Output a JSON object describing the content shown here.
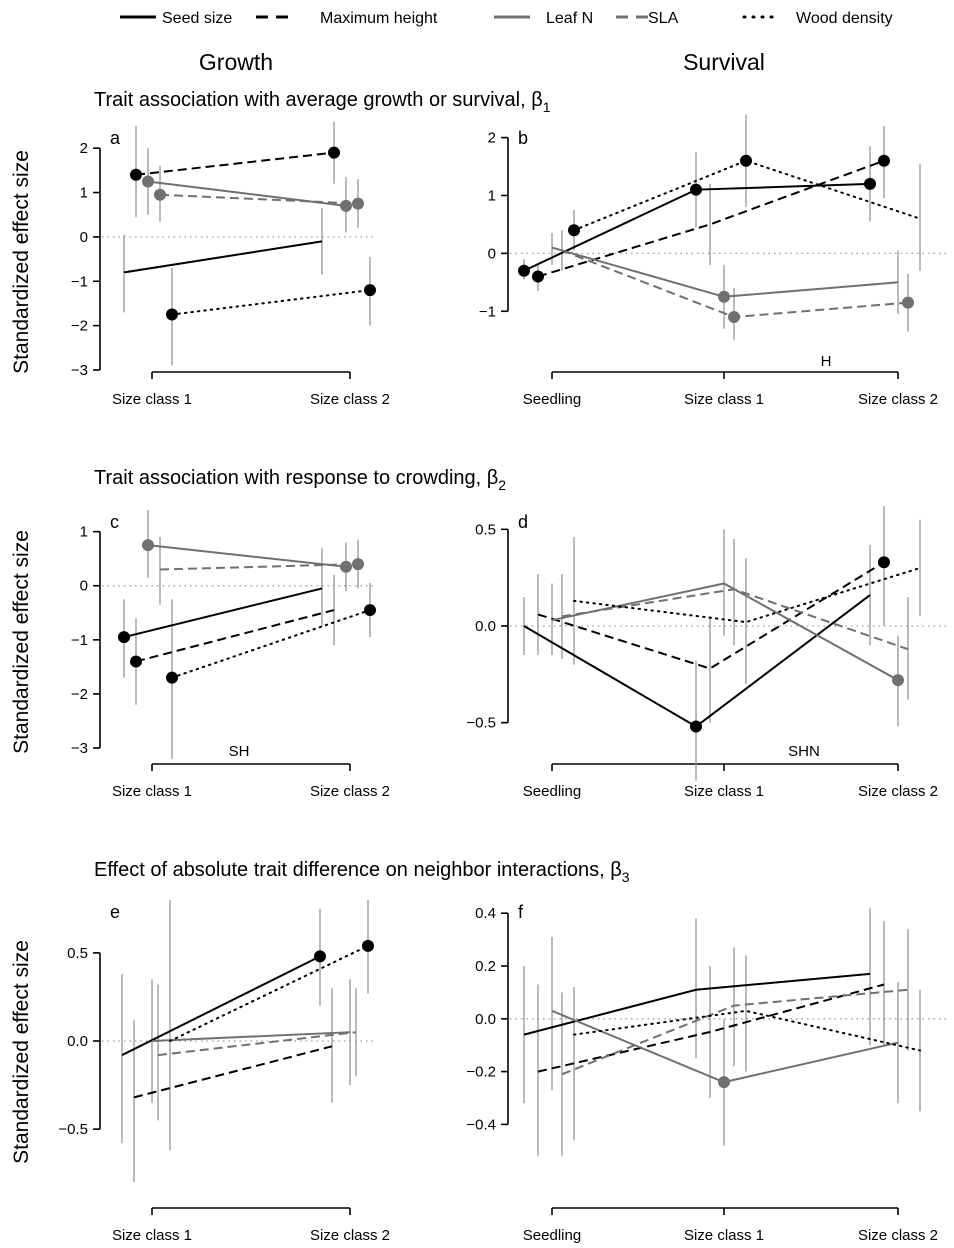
{
  "legend": [
    {
      "key": "seed",
      "label": "Seed size",
      "color": "#000000",
      "dash": "solid",
      "point": "#000000"
    },
    {
      "key": "height",
      "label": "Maximum height",
      "color": "#000000",
      "dash": "dashed",
      "point": "#000000"
    },
    {
      "key": "leafn",
      "label": "Leaf N",
      "color": "#707070",
      "dash": "solid",
      "point": "#707070"
    },
    {
      "key": "sla",
      "label": "SLA",
      "color": "#707070",
      "dash": "dashed",
      "point": "#707070"
    },
    {
      "key": "wood",
      "label": "Wood density",
      "color": "#000000",
      "dash": "dotted",
      "point": "#000000"
    }
  ],
  "columns": {
    "growth": "Growth",
    "survival": "Survival"
  },
  "rows": [
    {
      "title": "Trait association with average growth or survival, β",
      "subscript": "1"
    },
    {
      "title": "Trait association with response to crowding, β",
      "subscript": "2"
    },
    {
      "title": "Effect of absolute trait difference on neighbor interactions, β",
      "subscript": "3"
    }
  ],
  "ylabel": "Standardized effect size",
  "chart_data": [
    {
      "panel": "a",
      "type": "line",
      "ylim": [
        -3,
        2.5
      ],
      "yticks": [
        -3,
        -2,
        -1,
        0,
        1,
        2
      ],
      "yticklabels": [
        "−3",
        "−2",
        "−1",
        "0",
        "1",
        "2"
      ],
      "categories": [
        "Size class 1",
        "Size class 2"
      ],
      "annotation": "",
      "series": [
        {
          "key": "seed",
          "values": [
            -0.8,
            -0.1
          ],
          "ci": [
            [
              -1.7,
              0.05
            ],
            [
              -0.85,
              0.65
            ]
          ],
          "significant": [
            false,
            false
          ]
        },
        {
          "key": "height",
          "values": [
            1.4,
            1.9
          ],
          "ci": [
            [
              0.45,
              2.5
            ],
            [
              1.2,
              2.6
            ]
          ],
          "significant": [
            true,
            true
          ]
        },
        {
          "key": "leafn",
          "values": [
            1.25,
            0.7
          ],
          "ci": [
            [
              0.5,
              2.0
            ],
            [
              0.1,
              1.35
            ]
          ],
          "significant": [
            true,
            true
          ]
        },
        {
          "key": "sla",
          "values": [
            0.95,
            0.75
          ],
          "ci": [
            [
              0.35,
              1.6
            ],
            [
              0.2,
              1.3
            ]
          ],
          "significant": [
            true,
            true
          ]
        },
        {
          "key": "wood",
          "values": [
            -1.75,
            -1.2
          ],
          "ci": [
            [
              -2.9,
              -0.7
            ],
            [
              -2.0,
              -0.45
            ]
          ],
          "significant": [
            true,
            true
          ]
        }
      ]
    },
    {
      "panel": "b",
      "type": "line",
      "ylim": [
        -1.6,
        2.2
      ],
      "yticks": [
        -1,
        0,
        1,
        2
      ],
      "yticklabels": [
        "−1",
        "0",
        "1",
        "2"
      ],
      "categories": [
        "Seedling",
        "Size class 1",
        "Size class 2"
      ],
      "annotation": "H",
      "series": [
        {
          "key": "seed",
          "values": [
            -0.3,
            1.1,
            1.2
          ],
          "ci": [
            [
              -0.45,
              -0.1
            ],
            [
              0.45,
              1.75
            ],
            [
              0.55,
              1.85
            ]
          ],
          "significant": [
            true,
            true,
            true
          ]
        },
        {
          "key": "height",
          "values": [
            -0.4,
            0.5,
            1.6
          ],
          "ci": [
            [
              -0.65,
              -0.2
            ],
            [
              -0.2,
              1.2
            ],
            [
              0.95,
              2.2
            ]
          ],
          "significant": [
            true,
            false,
            true
          ]
        },
        {
          "key": "leafn",
          "values": [
            0.1,
            -0.75,
            -0.5
          ],
          "ci": [
            [
              -0.2,
              0.35
            ],
            [
              -1.3,
              -0.2
            ],
            [
              -1.05,
              0.05
            ]
          ],
          "significant": [
            false,
            true,
            false
          ]
        },
        {
          "key": "sla",
          "values": [
            0.05,
            -1.1,
            -0.85
          ],
          "ci": [
            [
              -0.3,
              0.4
            ],
            [
              -1.5,
              -0.6
            ],
            [
              -1.35,
              -0.35
            ]
          ],
          "significant": [
            false,
            true,
            true
          ]
        },
        {
          "key": "wood",
          "values": [
            0.4,
            1.6,
            0.6
          ],
          "ci": [
            [
              0.05,
              0.75
            ],
            [
              0.8,
              2.4
            ],
            [
              -0.3,
              1.55
            ]
          ],
          "significant": [
            true,
            true,
            false
          ]
        }
      ]
    },
    {
      "panel": "c",
      "type": "line",
      "ylim": [
        -3,
        1.4
      ],
      "yticks": [
        -3,
        -2,
        -1,
        0,
        1
      ],
      "yticklabels": [
        "−3",
        "−2",
        "−1",
        "0",
        "1"
      ],
      "categories": [
        "Size class 1",
        "Size class 2"
      ],
      "annotation": "SH",
      "series": [
        {
          "key": "seed",
          "values": [
            -0.95,
            -0.05
          ],
          "ci": [
            [
              -1.7,
              -0.25
            ],
            [
              -0.75,
              0.7
            ]
          ],
          "significant": [
            true,
            false
          ]
        },
        {
          "key": "height",
          "values": [
            -1.4,
            -0.45
          ],
          "ci": [
            [
              -2.2,
              -0.6
            ],
            [
              -1.1,
              0.2
            ]
          ],
          "significant": [
            true,
            false
          ]
        },
        {
          "key": "leafn",
          "values": [
            0.75,
            0.35
          ],
          "ci": [
            [
              0.15,
              1.4
            ],
            [
              -0.1,
              0.8
            ]
          ],
          "significant": [
            true,
            true
          ]
        },
        {
          "key": "sla",
          "values": [
            0.3,
            0.4
          ],
          "ci": [
            [
              -0.35,
              0.9
            ],
            [
              -0.05,
              0.85
            ]
          ],
          "significant": [
            false,
            true
          ]
        },
        {
          "key": "wood",
          "values": [
            -1.7,
            -0.45
          ],
          "ci": [
            [
              -3.2,
              -0.25
            ],
            [
              -0.95,
              0.05
            ]
          ],
          "significant": [
            true,
            true
          ]
        }
      ]
    },
    {
      "panel": "d",
      "type": "line",
      "ylim": [
        -0.6,
        0.6
      ],
      "yticks": [
        -0.5,
        0,
        0.5
      ],
      "yticklabels": [
        "−0.5",
        "0.0",
        "0.5"
      ],
      "categories": [
        "Seedling",
        "Size class 1",
        "Size class 2"
      ],
      "annotation": "SHN",
      "series": [
        {
          "key": "seed",
          "values": [
            0.0,
            -0.52,
            0.16
          ],
          "ci": [
            [
              -0.15,
              0.15
            ],
            [
              -0.8,
              -0.18
            ],
            [
              -0.1,
              0.42
            ]
          ],
          "significant": [
            false,
            true,
            false
          ]
        },
        {
          "key": "height",
          "values": [
            0.06,
            -0.22,
            0.33
          ],
          "ci": [
            [
              -0.15,
              0.27
            ],
            [
              -0.5,
              0.05
            ],
            [
              0.0,
              0.62
            ]
          ],
          "significant": [
            false,
            false,
            true
          ]
        },
        {
          "key": "leafn",
          "values": [
            0.03,
            0.22,
            -0.28
          ],
          "ci": [
            [
              -0.15,
              0.22
            ],
            [
              -0.05,
              0.5
            ],
            [
              -0.52,
              -0.05
            ]
          ],
          "significant": [
            false,
            false,
            true
          ]
        },
        {
          "key": "sla",
          "values": [
            0.05,
            0.19,
            -0.12
          ],
          "ci": [
            [
              -0.17,
              0.27
            ],
            [
              -0.1,
              0.45
            ],
            [
              -0.38,
              0.15
            ]
          ],
          "significant": [
            false,
            false,
            false
          ]
        },
        {
          "key": "wood",
          "values": [
            0.13,
            0.02,
            0.3
          ],
          "ci": [
            [
              -0.2,
              0.46
            ],
            [
              -0.3,
              0.35
            ],
            [
              0.05,
              0.55
            ]
          ],
          "significant": [
            false,
            false,
            false
          ]
        }
      ]
    },
    {
      "panel": "e",
      "type": "line",
      "ylim": [
        -0.8,
        0.8
      ],
      "yticks": [
        -0.5,
        0,
        0.5
      ],
      "yticklabels": [
        "−0.5",
        "0.0",
        "0.5"
      ],
      "categories": [
        "Size class 1",
        "Size class 2"
      ],
      "annotation": "",
      "series": [
        {
          "key": "seed",
          "values": [
            -0.08,
            0.48
          ],
          "ci": [
            [
              -0.58,
              0.38
            ],
            [
              0.2,
              0.75
            ]
          ],
          "significant": [
            false,
            true
          ]
        },
        {
          "key": "height",
          "values": [
            -0.32,
            -0.03
          ],
          "ci": [
            [
              -0.8,
              0.12
            ],
            [
              -0.35,
              0.3
            ]
          ],
          "significant": [
            false,
            false
          ]
        },
        {
          "key": "leafn",
          "values": [
            0.0,
            0.05
          ],
          "ci": [
            [
              -0.35,
              0.35
            ],
            [
              -0.25,
              0.35
            ]
          ],
          "significant": [
            false,
            false
          ]
        },
        {
          "key": "sla",
          "values": [
            -0.08,
            0.05
          ],
          "ci": [
            [
              -0.45,
              0.32
            ],
            [
              -0.2,
              0.3
            ]
          ],
          "significant": [
            false,
            false
          ]
        },
        {
          "key": "wood",
          "values": [
            0.0,
            0.54
          ],
          "ci": [
            [
              -0.62,
              0.8
            ],
            [
              0.27,
              0.8
            ]
          ],
          "significant": [
            false,
            true
          ]
        }
      ]
    },
    {
      "panel": "f",
      "type": "line",
      "ylim": [
        -0.55,
        0.45
      ],
      "yticks": [
        -0.4,
        -0.2,
        0,
        0.2,
        0.4
      ],
      "yticklabels": [
        "−0.4",
        "−0.2",
        "0.0",
        "0.2",
        "0.4"
      ],
      "categories": [
        "Seedling",
        "Size class 1",
        "Size class 2"
      ],
      "annotation": "",
      "series": [
        {
          "key": "seed",
          "values": [
            -0.06,
            0.11,
            0.17
          ],
          "ci": [
            [
              -0.32,
              0.2
            ],
            [
              -0.15,
              0.38
            ],
            [
              -0.1,
              0.42
            ]
          ],
          "significant": [
            false,
            false,
            false
          ]
        },
        {
          "key": "height",
          "values": [
            -0.2,
            -0.05,
            0.13
          ],
          "ci": [
            [
              -0.52,
              0.13
            ],
            [
              -0.3,
              0.2
            ],
            [
              -0.1,
              0.37
            ]
          ],
          "significant": [
            false,
            false,
            false
          ]
        },
        {
          "key": "leafn",
          "values": [
            0.03,
            -0.24,
            -0.09
          ],
          "ci": [
            [
              -0.27,
              0.31
            ],
            [
              -0.48,
              0.0
            ],
            [
              -0.32,
              0.14
            ]
          ],
          "significant": [
            false,
            true,
            false
          ]
        },
        {
          "key": "sla",
          "values": [
            -0.21,
            0.05,
            0.11
          ],
          "ci": [
            [
              -0.52,
              0.1
            ],
            [
              -0.18,
              0.27
            ],
            [
              -0.12,
              0.34
            ]
          ],
          "significant": [
            false,
            false,
            false
          ]
        },
        {
          "key": "wood",
          "values": [
            -0.06,
            0.03,
            -0.12
          ],
          "ci": [
            [
              -0.46,
              0.12
            ],
            [
              -0.2,
              0.24
            ],
            [
              -0.35,
              0.11
            ]
          ],
          "significant": [
            false,
            false,
            false
          ]
        }
      ]
    }
  ]
}
